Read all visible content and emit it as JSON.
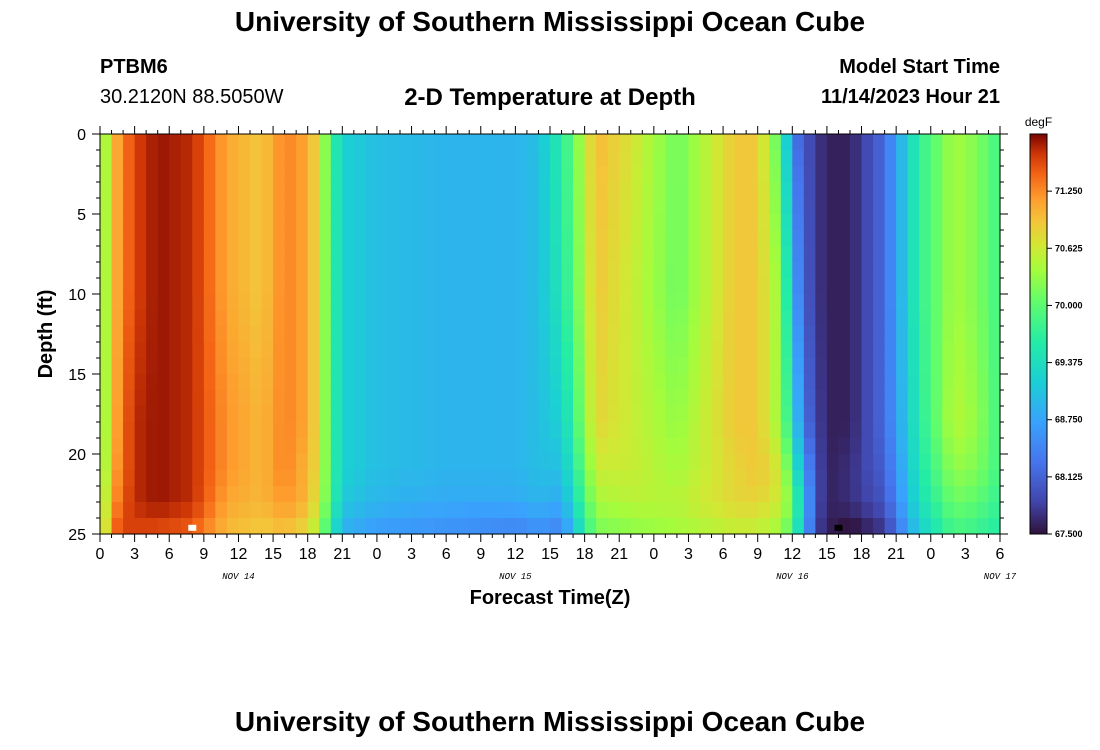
{
  "header": {
    "title": "University of Southern Mississippi Ocean Cube",
    "station": "PTBM6",
    "coords": "30.2120N  88.5050W",
    "subtitle": "2-D Temperature at Depth",
    "model_start_label": "Model Start Time",
    "model_start_value": "11/14/2023 Hour 21"
  },
  "footer": {
    "title": "University of Southern Mississippi Ocean Cube"
  },
  "chart_data": {
    "type": "heatmap",
    "title": "2-D Temperature at Depth",
    "xlabel": "Forecast Time(Z)",
    "ylabel": "Depth (ft)",
    "x_tick_labels": [
      "0",
      "3",
      "6",
      "9",
      "12",
      "15",
      "18",
      "21",
      "0",
      "3",
      "6",
      "9",
      "12",
      "15",
      "18",
      "21",
      "0",
      "3",
      "6",
      "9",
      "12",
      "15",
      "18",
      "21",
      "0",
      "3",
      "6"
    ],
    "x_date_labels": [
      {
        "label": "NOV 14",
        "hour": 12
      },
      {
        "label": "NOV 15",
        "hour": 36
      },
      {
        "label": "NOV 16",
        "hour": 60
      },
      {
        "label": "NOV 17",
        "hour": 78
      }
    ],
    "xlim_hours": [
      0,
      78
    ],
    "y_tick_labels": [
      "0",
      "5",
      "10",
      "15",
      "20",
      "25"
    ],
    "ylim_ft": [
      0,
      25
    ],
    "y_inverted": true,
    "colorbar": {
      "unit": "degF",
      "min": 67.5,
      "max": 71.875,
      "tick_values": [
        71.25,
        70.625,
        70.0,
        69.375,
        68.75,
        68.125,
        67.5
      ],
      "tick_labels": [
        "71.250",
        "70.625",
        "70.000",
        "69.375",
        "68.750",
        "68.125",
        "67.500"
      ]
    },
    "profile_times_hours": [
      0,
      1,
      2,
      3,
      5,
      8,
      11,
      14,
      16,
      18,
      19,
      20,
      21,
      24,
      30,
      36,
      38,
      40,
      43,
      46,
      50,
      55,
      57,
      58,
      59,
      60,
      61,
      62,
      63,
      65,
      68,
      71,
      74,
      76,
      78
    ],
    "profile_depths_ft": [
      0,
      10,
      18,
      21,
      23,
      24.5
    ],
    "temperature_degF": [
      [
        70.0,
        70.0,
        70.0,
        70.0,
        70.1,
        70.1
      ],
      [
        70.9,
        70.9,
        70.9,
        71.0,
        71.1,
        71.3
      ],
      [
        71.3,
        71.3,
        71.4,
        71.4,
        71.5,
        71.6
      ],
      [
        71.6,
        71.6,
        71.7,
        71.7,
        71.7,
        71.6
      ],
      [
        71.8,
        71.8,
        71.8,
        71.8,
        71.8,
        71.6
      ],
      [
        71.7,
        71.7,
        71.7,
        71.7,
        71.7,
        71.5
      ],
      [
        71.1,
        71.1,
        71.2,
        71.2,
        71.1,
        71.0
      ],
      [
        70.9,
        70.9,
        71.0,
        71.0,
        71.0,
        70.9
      ],
      [
        71.3,
        71.3,
        71.3,
        71.3,
        71.2,
        71.0
      ],
      [
        71.1,
        71.1,
        71.1,
        71.0,
        71.0,
        70.8
      ],
      [
        70.7,
        70.7,
        70.7,
        70.7,
        70.6,
        70.4
      ],
      [
        69.8,
        69.8,
        69.8,
        69.8,
        69.8,
        69.6
      ],
      [
        69.2,
        69.2,
        69.2,
        69.2,
        69.1,
        68.9
      ],
      [
        69.0,
        69.0,
        69.0,
        69.0,
        68.9,
        68.7
      ],
      [
        68.9,
        68.9,
        68.9,
        68.9,
        68.8,
        68.6
      ],
      [
        68.9,
        68.9,
        68.9,
        68.9,
        68.8,
        68.5
      ],
      [
        69.0,
        69.0,
        69.0,
        69.0,
        68.9,
        68.6
      ],
      [
        69.6,
        69.5,
        69.2,
        69.0,
        68.8,
        68.5
      ],
      [
        71.0,
        70.9,
        70.8,
        70.6,
        70.4,
        70.2
      ],
      [
        70.7,
        70.6,
        70.6,
        70.6,
        70.5,
        70.3
      ],
      [
        70.1,
        70.1,
        70.3,
        70.4,
        70.5,
        70.4
      ],
      [
        70.9,
        70.9,
        70.9,
        70.8,
        70.8,
        70.6
      ],
      [
        70.9,
        70.9,
        70.9,
        70.9,
        70.8,
        70.6
      ],
      [
        70.4,
        70.6,
        70.6,
        70.8,
        70.7,
        70.5
      ],
      [
        69.9,
        70.3,
        70.3,
        70.6,
        70.6,
        70.4
      ],
      [
        68.4,
        68.9,
        69.4,
        69.8,
        70.1,
        69.9
      ],
      [
        68.0,
        68.1,
        68.3,
        68.7,
        69.0,
        68.9
      ],
      [
        67.8,
        67.8,
        67.9,
        68.0,
        68.0,
        67.9
      ],
      [
        67.6,
        67.6,
        67.6,
        67.6,
        67.6,
        67.6
      ],
      [
        67.6,
        67.6,
        67.6,
        67.7,
        67.7,
        67.5
      ],
      [
        68.2,
        68.2,
        68.2,
        68.1,
        68.0,
        67.8
      ],
      [
        69.7,
        69.7,
        69.6,
        69.5,
        69.4,
        69.2
      ],
      [
        70.4,
        70.4,
        70.5,
        70.3,
        70.1,
        69.9
      ],
      [
        70.2,
        70.2,
        70.3,
        70.2,
        70.0,
        69.8
      ],
      [
        69.8,
        69.8,
        69.8,
        69.8,
        69.7,
        69.6
      ]
    ],
    "markers": [
      {
        "color": "#ffffff",
        "hour": 8,
        "depth_ft": 24.8
      },
      {
        "color": "#000000",
        "hour": 64,
        "depth_ft": 24.8
      }
    ]
  }
}
